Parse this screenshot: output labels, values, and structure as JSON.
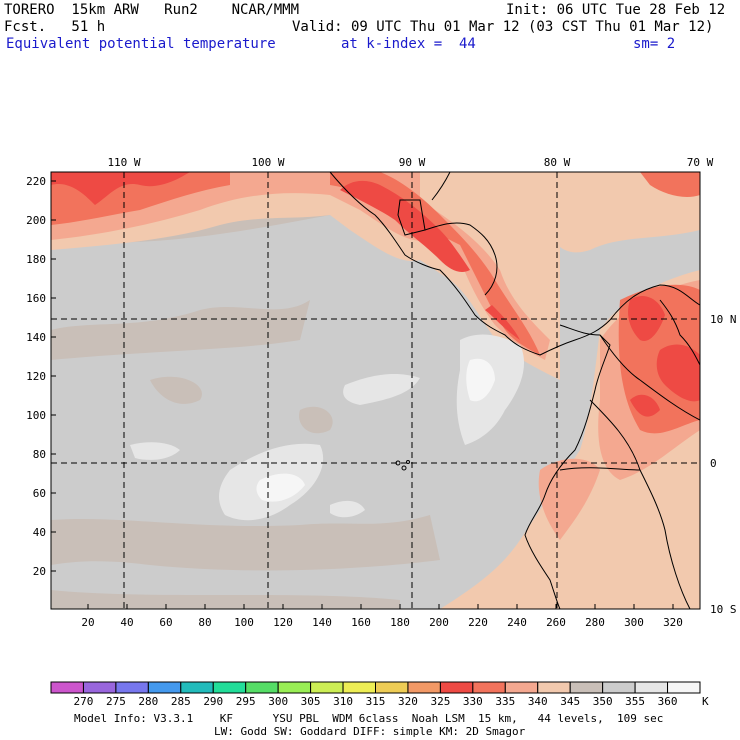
{
  "header": {
    "model": "TORERO  15km ARW   Run2    NCAR/MMM",
    "init": "Init: 06 UTC Tue 28 Feb 12",
    "fcst": "Fcst.   51 h",
    "valid": "Valid: 09 UTC Thu 01 Mar 12 (03 CST Thu 01 Mar 12)",
    "field": "Equivalent potential temperature",
    "level": "at k-index =  44",
    "smooth": "sm= 2"
  },
  "map": {
    "top_lon_labels": [
      "110 W",
      "100 W",
      "90 W",
      "80 W",
      "70 W"
    ],
    "right_lat_labels": [
      "10 N",
      "0",
      "10 S"
    ],
    "left_grid_labels": [
      "220",
      "200",
      "180",
      "160",
      "140",
      "120",
      "100",
      "80",
      "60",
      "40",
      "20"
    ],
    "bottom_grid_labels": [
      "20",
      "40",
      "60",
      "80",
      "100",
      "120",
      "140",
      "160",
      "180",
      "200",
      "220",
      "240",
      "260",
      "280",
      "300",
      "320"
    ],
    "background_level": "350–355 K",
    "colors": {
      "level_345_350": "#c9bfb8",
      "level_350_355": "#cccccc",
      "level_355_360": "#e6e6e6",
      "level_360_plus": "#f6f6f6",
      "level_340_345": "#f2c9ae",
      "level_335_340": "#f4a890",
      "level_330_335": "#f2735c",
      "level_325_330": "#ee4a44",
      "coast": "#000000"
    }
  },
  "colorbar": {
    "levels": [
      "270",
      "275",
      "280",
      "285",
      "290",
      "295",
      "300",
      "305",
      "310",
      "315",
      "320",
      "325",
      "330",
      "335",
      "340",
      "345",
      "350",
      "355",
      "360"
    ],
    "unit": "K",
    "colors": [
      "#cc55cc",
      "#9966dd",
      "#7777ee",
      "#4499ee",
      "#22bbbb",
      "#22dd99",
      "#55dd66",
      "#99ee55",
      "#ccee55",
      "#eeee55",
      "#eecc55",
      "#f29966",
      "#ee4a44",
      "#f2735c",
      "#f4a890",
      "#f2c9ae",
      "#c9bfb8",
      "#cccccc",
      "#e6e6e6",
      "#f6f6f6"
    ]
  },
  "footer": {
    "line1": "Model Info: V3.3.1    KF      YSU PBL  WDM 6class  Noah LSM  15 km,   44 levels,  109 sec",
    "line2": "LW: Godd SW: Goddard DIFF: simple KM: 2D Smagor"
  }
}
